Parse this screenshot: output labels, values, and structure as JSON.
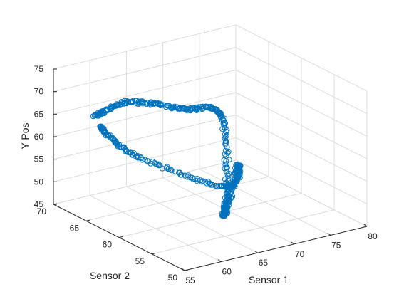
{
  "chart_data": {
    "type": "scatter3",
    "title": "",
    "xlabel": "Sensor 1",
    "ylabel": "Sensor 2",
    "zlabel": "Y Pos",
    "xlim": [
      55,
      80
    ],
    "ylim": [
      50,
      70
    ],
    "zlim": [
      45,
      75
    ],
    "xticks": [
      "55",
      "60",
      "65",
      "70",
      "75",
      "80"
    ],
    "yticks": [
      "50",
      "55",
      "60",
      "65",
      "70"
    ],
    "zticks": [
      "45",
      "50",
      "55",
      "60",
      "65",
      "70",
      "75"
    ],
    "grid": true,
    "marker": "circle",
    "marker_color": "#0072bd",
    "path_keypoints": [
      {
        "x": 59.0,
        "y": 68.0,
        "z": 64.5
      },
      {
        "x": 61.0,
        "y": 65.0,
        "z": 69.0
      },
      {
        "x": 65.0,
        "y": 61.5,
        "z": 68.5
      },
      {
        "x": 69.0,
        "y": 60.0,
        "z": 66.5
      },
      {
        "x": 68.0,
        "y": 58.0,
        "z": 50.5
      },
      {
        "x": 68.5,
        "y": 59.0,
        "z": 46.0
      },
      {
        "x": 70.0,
        "y": 58.5,
        "z": 56.0
      },
      {
        "x": 69.5,
        "y": 60.0,
        "z": 50.5
      },
      {
        "x": 62.5,
        "y": 66.0,
        "z": 56.0
      },
      {
        "x": 59.5,
        "y": 68.0,
        "z": 62.0
      }
    ],
    "points_per_segment": 60
  }
}
